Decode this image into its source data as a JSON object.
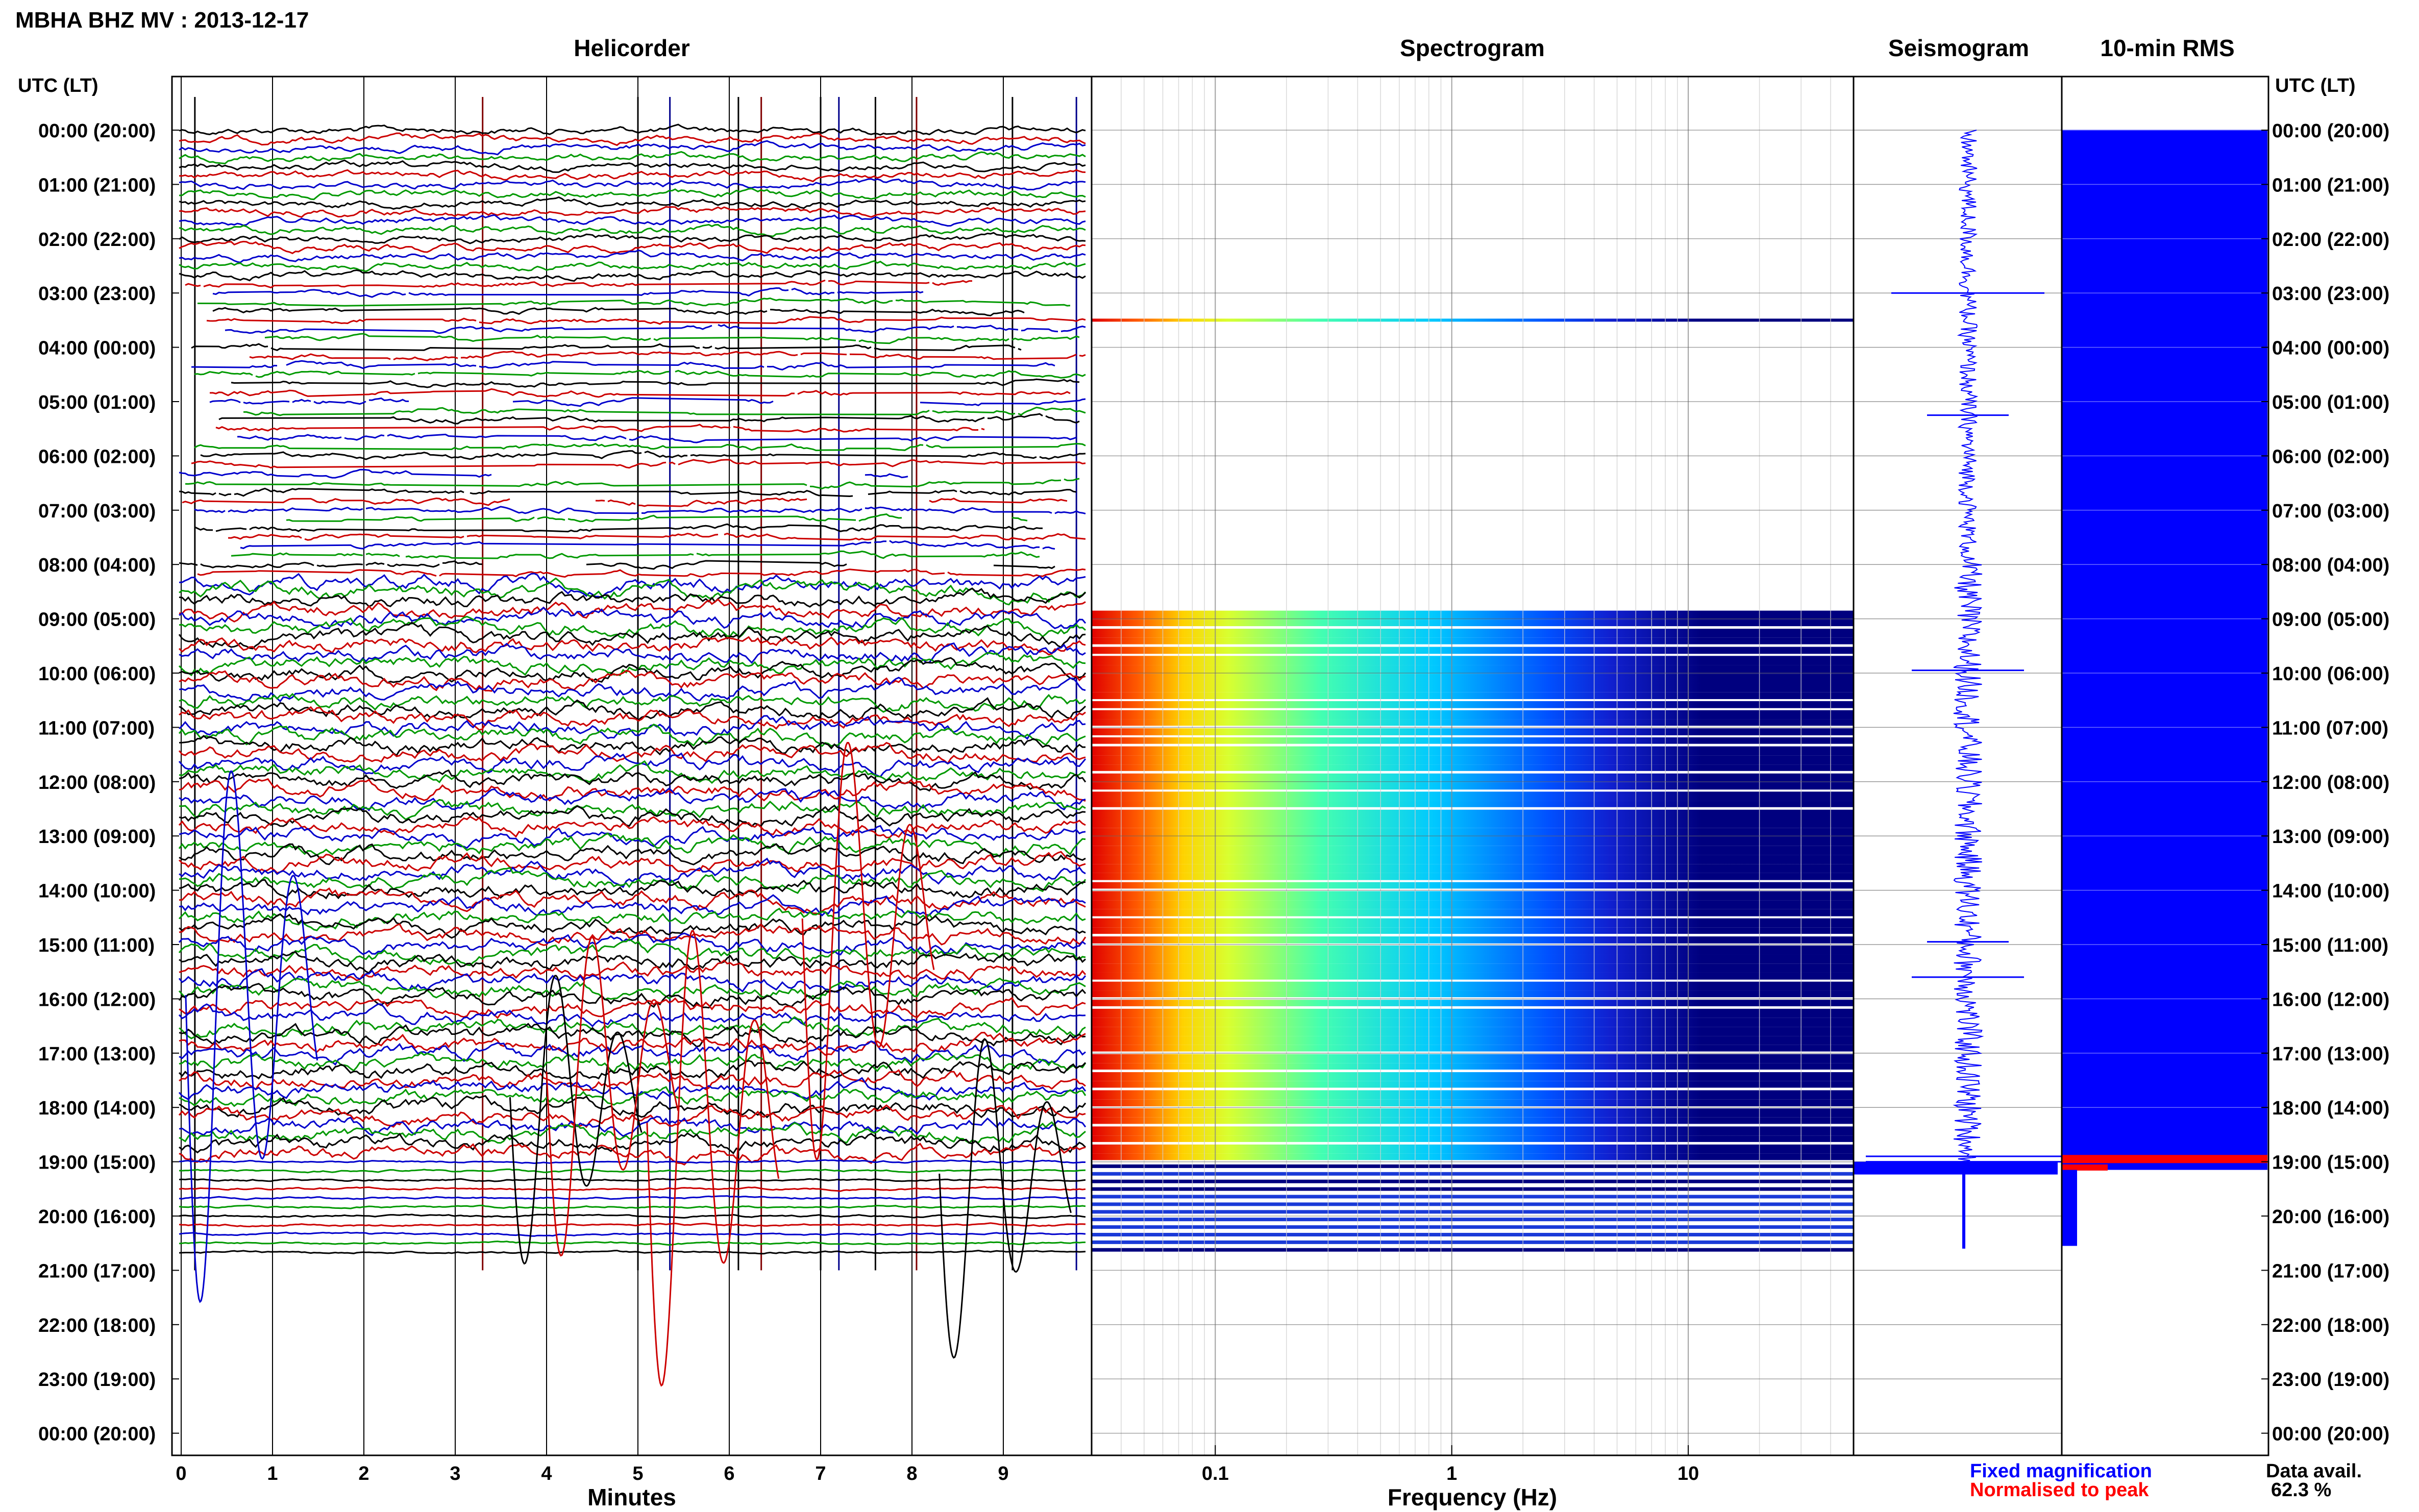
{
  "page": {
    "title": "MBHA BHZ MV : 2013-12-17",
    "utc_header": "UTC (LT)",
    "legend_fixed": "Fixed magnification",
    "legend_normalised": "Normalised to peak",
    "data_avail_label": "Data avail.",
    "data_avail_value": "62.3 %"
  },
  "colors": {
    "trace_cycle": [
      "#000000",
      "#cc0000",
      "#0000cc",
      "#009900"
    ],
    "spectrogram_low": "#00007f",
    "spectrogram_high": "#e00000",
    "seismogram": "#0000ff",
    "rms_fixed": "#0000ff",
    "rms_normalised": "#ff0000"
  },
  "chart_data": [
    {
      "type": "line",
      "panel": "helicorder",
      "title": "Helicorder",
      "xlabel": "Minutes",
      "ylabel": "UTC (LT)",
      "xlim": [
        0,
        10
      ],
      "xticks": [
        "0",
        "1",
        "2",
        "3",
        "4",
        "5",
        "6",
        "7",
        "8",
        "9"
      ],
      "ytick_labels": [
        "00:00 (20:00)",
        "01:00 (21:00)",
        "02:00 (22:00)",
        "03:00 (23:00)",
        "04:00 (00:00)",
        "05:00 (01:00)",
        "06:00 (02:00)",
        "07:00 (03:00)",
        "08:00 (04:00)",
        "09:00 (05:00)",
        "10:00 (06:00)",
        "11:00 (07:00)",
        "12:00 (08:00)",
        "13:00 (09:00)",
        "14:00 (10:00)",
        "15:00 (11:00)",
        "16:00 (12:00)",
        "17:00 (13:00)",
        "18:00 (14:00)",
        "19:00 (15:00)",
        "20:00 (16:00)",
        "21:00 (17:00)",
        "22:00 (18:00)",
        "23:00 (19:00)",
        "00:00 (20:00)"
      ],
      "rows_per_hour": 6,
      "gap_hours": [
        [
          2.7,
          8.2
        ]
      ],
      "data_end_hour": 20.85,
      "grid": true
    },
    {
      "type": "heatmap",
      "panel": "spectrogram",
      "title": "Spectrogram",
      "xlabel": "Frequency (Hz)",
      "xscale": "log",
      "xlim": [
        0.03,
        50
      ],
      "xticks": [
        "0.1",
        "1",
        "10"
      ],
      "ylim_hours": [
        0,
        24
      ],
      "data_start_hour": 8.85,
      "isolated_line_hour": 3.5,
      "data_end_hour": 20.65
    },
    {
      "type": "line",
      "panel": "seismogram",
      "title": "Seismogram",
      "ylim_hours": [
        0,
        24
      ],
      "data_start_hour": 0.0,
      "data_end_hour": 20.6
    },
    {
      "type": "bar",
      "panel": "rms",
      "title": "10-min RMS",
      "ylim_hours": [
        0,
        24
      ],
      "fixed_end_hour": 19.15,
      "normalised_peak_hour": 18.95,
      "tail_end_hour": 20.55
    }
  ]
}
